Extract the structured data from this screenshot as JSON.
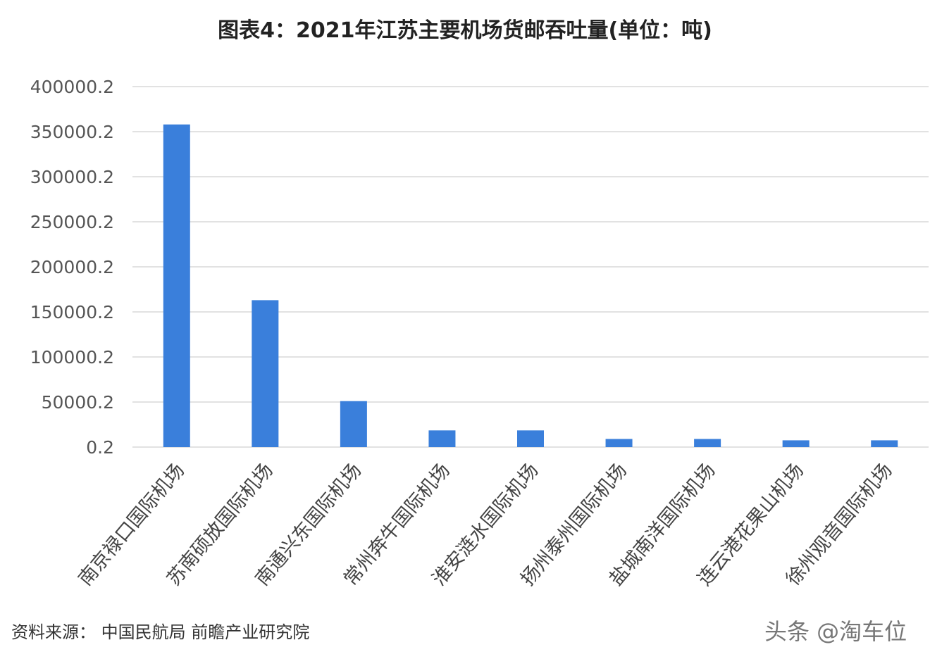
{
  "chart_data": {
    "type": "bar",
    "title": "图表4：2021年江苏主要机场货邮吞吐量(单位：吨)",
    "xlabel": "",
    "ylabel": "",
    "ylim": [
      0.2,
      400000.2
    ],
    "yticks": [
      "400000.2",
      "350000.2",
      "300000.2",
      "250000.2",
      "200000.2",
      "150000.2",
      "100000.2",
      "50000.2",
      "0.2"
    ],
    "ytick_values": [
      400000.2,
      350000.2,
      300000.2,
      250000.2,
      200000.2,
      150000.2,
      100000.2,
      50000.2,
      0.2
    ],
    "categories": [
      "南京禄口国际机场",
      "苏南硕放国际机场",
      "南通兴东国际机场",
      "常州奔牛国际机场",
      "淮安涟水国际机场",
      "扬州泰州国际机场",
      "盐城南洋国际机场",
      "连云港花果山机场",
      "徐州观音国际机场"
    ],
    "values": [
      358000,
      163000,
      51000,
      18500,
      18500,
      9000,
      9000,
      7500,
      7500
    ],
    "grid": true,
    "bar_color": "#3a7fdb",
    "grid_color": "#d9d9d9"
  },
  "source": "资料来源： 中国民航局 前瞻产业研究院",
  "watermark": "头条 @淘车位"
}
